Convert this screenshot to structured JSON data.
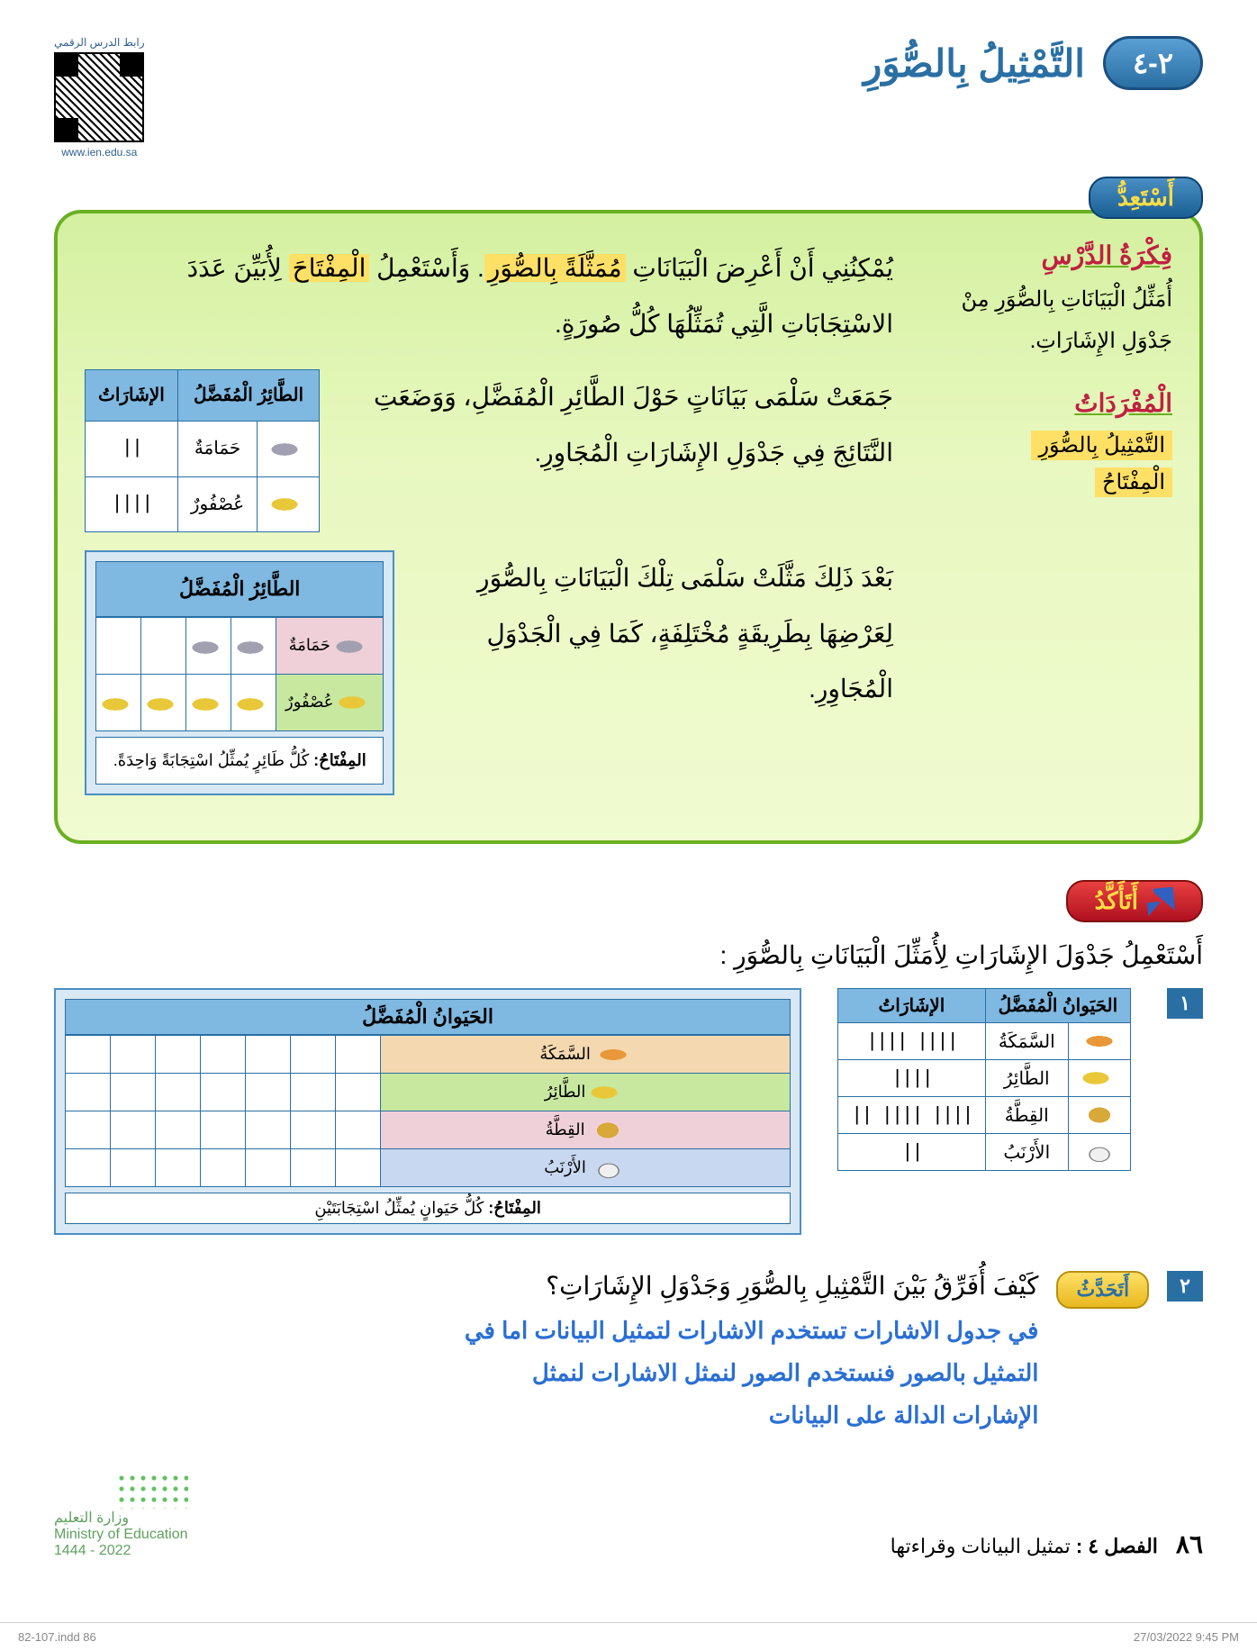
{
  "header": {
    "badge_number": "٢-٤",
    "lesson_title": "التَّمْثِيلُ بِالصُّوَرِ",
    "qr_label_top": "رابط الدرس الرقمي",
    "qr_url": "www.ien.edu.sa"
  },
  "prep_badge": "أَسْتَعِدُّ",
  "sidebar": {
    "idea_heading": "فِكْرَةُ الدَّرْسِ",
    "idea_text": "أُمَثِّلُ الْبَيَانَاتِ بِالصُّوَرِ مِنْ جَدْوَلِ الإِشَارَاتِ.",
    "vocab_heading": "الْمُفْرَدَاتُ",
    "vocab_1": "التَّمْثِيلُ بِالصُّوَرِ",
    "vocab_2": "الْمِفْتَاحُ"
  },
  "intro": {
    "p1_a": "يُمْكِنُنِي أَنْ أَعْرِضَ الْبَيَانَاتِ ",
    "p1_hl1": "مُمَثَّلَةً بِالصُّوَرِ",
    "p1_b": ". وَأَسْتَعْمِلُ ",
    "p1_hl2": "الْمِفْتَاحَ",
    "p1_c": " لِأُبَيِّنَ عَدَدَ الاسْتِجَابَاتِ الَّتِي تُمَثِّلُهَا كُلُّ صُورَةٍ."
  },
  "salma": {
    "p1": "جَمَعَتْ سَلْمَى بَيَانَاتٍ حَوْلَ الطَّائِرِ الْمُفَضَّلِ، وَوَضَعَتِ النَّتَائِجَ فِي جَدْوَلِ الإِشَارَاتِ الْمُجَاوِرِ.",
    "p2": "بَعْدَ ذَلِكَ مَثَّلَتْ سَلْمَى تِلْكَ الْبَيَانَاتِ بِالصُّوَرِ لِعَرْضِهَا بِطَرِيقَةٍ مُخْتَلِفَةٍ، كَمَا فِي الْجَدْوَلِ الْمُجَاوِرِ."
  },
  "bird_tally": {
    "col1": "الطَّائِرُ الْمُفَضَّلُ",
    "col2": "الإشَارَاتُ",
    "rows": [
      {
        "name": "حَمَامَةٌ",
        "icon": "dove",
        "tally": "||"
      },
      {
        "name": "عُصْفُورٌ",
        "icon": "canary",
        "tally": "||||"
      }
    ]
  },
  "bird_picto": {
    "title": "الطَّائِرُ الْمُفَضَّلُ",
    "rows": [
      {
        "name": "حَمَامَةٌ",
        "icon": "dove",
        "count": 2,
        "cls": "pink"
      },
      {
        "name": "عُصْفُورٌ",
        "icon": "canary",
        "count": 4,
        "cls": "green"
      }
    ],
    "key_label": "المِفْتَاحُ:",
    "key_text": " كُلُّ طَائِرٍ يُمثِّلُ اسْتِجَابَةً وَاحِدَةً."
  },
  "confirm_badge": "أَتَأَكَّدُ",
  "instruction": "أَسْتَعْمِلُ جَدْوَلَ الإِشَارَاتِ لِأُمَثِّلَ الْبَيَانَاتِ بِالصُّوَرِ :",
  "q1_num": "١",
  "animal_tally": {
    "col1": "الحَيَوانُ الْمُفَضَّلُ",
    "col2": "الإشَارَاتُ",
    "rows": [
      {
        "icon": "fish",
        "name": "السَّمَكَةُ",
        "tally": "|||| ||||"
      },
      {
        "icon": "canary",
        "name": "الطَّائِرُ",
        "tally": "||||"
      },
      {
        "icon": "cat",
        "name": "القِطَّةُ",
        "tally": "|||| |||| ||"
      },
      {
        "icon": "rabbit",
        "name": "الأَرْنَبُ",
        "tally": "||"
      }
    ]
  },
  "animal_picto": {
    "title": "الحَيَوانُ الْمُفَضَّلُ",
    "rows": [
      {
        "icon": "fish",
        "name": "السَّمَكَةُ",
        "cls": "label"
      },
      {
        "icon": "canary",
        "name": "الطَّائِرُ",
        "cls": "green"
      },
      {
        "icon": "cat",
        "name": "القِطَّةُ",
        "cls": "pink"
      },
      {
        "icon": "rabbit",
        "name": "الأَرْنَبُ",
        "cls": "blue"
      }
    ],
    "cols": 7,
    "key_label": "المِفْتَاحُ:",
    "key_text": " كُلُّ حَيَوانٍ يُمثِّلُ اسْتِجَابَتَيْنِ"
  },
  "q2": {
    "num": "٢",
    "talk": "أَتَحَدَّثُ",
    "question": "كَيْفَ أُفَرِّقُ بَيْنَ التَّمْثِيلِ بِالصُّوَرِ وَجَدْوَلِ الإِشَارَاتِ؟",
    "answer_l1": "في جدول الاشارات تستخدم الاشارات لتمثيل البيانات اما في",
    "answer_l2": "التمثيل بالصور فنستخدم الصور لنمثل الاشارات لنمثل",
    "answer_l3": "الإشارات الدالة على البيانات"
  },
  "footer": {
    "page_num": "٨٦",
    "chapter": "الفصل ٤ :",
    "chapter_title": " تمثيل البيانات وقراءتها",
    "ministry_ar": "وزارة التعليم",
    "ministry_en": "Ministry of Education",
    "year": "2022 - 1444"
  },
  "print": {
    "left": "82-107.indd   86",
    "right": "27/03/2022   9:45 PM"
  }
}
